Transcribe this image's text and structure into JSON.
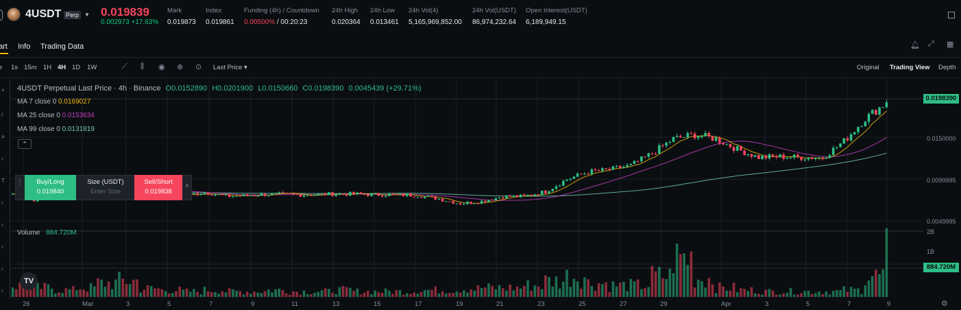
{
  "header": {
    "symbol": "4USDT",
    "badge": "Perp",
    "last_price": "0.019839",
    "change": "0.002973 +17.63%",
    "stats": [
      {
        "label": "Mark",
        "value": "0.019873",
        "x": 244
      },
      {
        "label": "Index",
        "value": "0.019861",
        "x": 300
      },
      {
        "label": "Funding (4h) / Countdown",
        "value": "",
        "x": 356
      },
      {
        "label": "24h High",
        "value": "0.020364",
        "x": 484
      },
      {
        "label": "24h Low",
        "value": "0.013461",
        "x": 540
      },
      {
        "label": "24h Vol(4)",
        "value": "5,165,969,852.00",
        "x": 596
      },
      {
        "label": "24h Vol(USDT)",
        "value": "86,974,232.64",
        "x": 689
      },
      {
        "label": "Open Interest(USDT)",
        "value": "6,189,949.15",
        "x": 767
      }
    ],
    "funding_rate": "0.00500%",
    "countdown": "/ 00:20:23"
  },
  "tabs": [
    "art",
    "Info",
    "Trading Data"
  ],
  "toolbar": {
    "intervals": [
      "e",
      "1s",
      "15m",
      "1H",
      "4H",
      "1D",
      "1W"
    ],
    "active_interval": "4H",
    "price_type": "Last Price",
    "views": [
      "Original",
      "Trading View",
      "Depth"
    ],
    "active_view": "Trading View"
  },
  "legend": {
    "title": "4USDT Perpetual Last Price · 4h · Binance",
    "o": "O0.0152890",
    "h": "H0.0201900",
    "l": "L0.0150660",
    "c": "C0.0198390",
    "delta": "0.0045439 (+29.71%)",
    "ma7_label": "MA 7 close 0",
    "ma7_value": "0.0169027",
    "ma25_label": "MA 25 close 0",
    "ma25_value": "0.0153634",
    "ma99_label": "MA 99 close 0",
    "ma99_value": "0.0131819",
    "volume_label": "Volume",
    "volume_value": "884.720M"
  },
  "order_panel": {
    "buy_label": "Buy/Long",
    "buy_price": "0.019840",
    "size_label": "Size (USDT)",
    "size_placeholder": "Enter Size",
    "sell_label": "Sell/Short",
    "sell_price": "0.019838"
  },
  "price_axis": {
    "current": "0.0198390",
    "ticks": [
      "0.0150000",
      "0.0099995",
      "0.0049995"
    ],
    "volume_current": "884.720M",
    "volume_ticks": [
      "2B",
      "1B"
    ]
  },
  "time_axis": [
    "26",
    "Mar",
    "3",
    "5",
    "7",
    "9",
    "11",
    "13",
    "15",
    "17",
    "19",
    "21",
    "23",
    "25",
    "27",
    "29",
    "Apr",
    "3",
    "5",
    "7",
    "9"
  ],
  "colors": {
    "up": "#2ebd85",
    "down": "#f6465d",
    "ma7": "#f0b90b",
    "ma25": "#c23fc1",
    "ma99": "#6fc6b7"
  },
  "chart_data": {
    "type": "candlestick",
    "interval": "4h",
    "series_hint": "daily summary of 4h closes read from chart",
    "dates": [
      "Feb 26",
      "Feb 27",
      "Feb 28",
      "Mar 1",
      "Mar 2",
      "Mar 3",
      "Mar 4",
      "Mar 5",
      "Mar 6",
      "Mar 7",
      "Mar 8",
      "Mar 9",
      "Mar 10",
      "Mar 11",
      "Mar 12",
      "Mar 13",
      "Mar 14",
      "Mar 15",
      "Mar 16",
      "Mar 17",
      "Mar 18",
      "Mar 19",
      "Mar 20",
      "Mar 21",
      "Mar 22",
      "Mar 23",
      "Mar 24",
      "Mar 25",
      "Mar 26",
      "Mar 27",
      "Mar 28",
      "Mar 29",
      "Mar 30",
      "Mar 31",
      "Apr 1",
      "Apr 2",
      "Apr 3",
      "Apr 4",
      "Apr 5",
      "Apr 6",
      "Apr 7",
      "Apr 8"
    ],
    "close": [
      0.0085,
      0.0078,
      0.0083,
      0.009,
      0.0091,
      0.0093,
      0.009,
      0.0086,
      0.0083,
      0.0087,
      0.0082,
      0.0083,
      0.0085,
      0.0084,
      0.0084,
      0.0085,
      0.0085,
      0.0084,
      0.0084,
      0.0083,
      0.0079,
      0.0073,
      0.0076,
      0.0082,
      0.0082,
      0.0088,
      0.0103,
      0.0112,
      0.0115,
      0.012,
      0.0135,
      0.0153,
      0.0158,
      0.0153,
      0.014,
      0.013,
      0.0131,
      0.013,
      0.013,
      0.015,
      0.0178,
      0.0198
    ],
    "volume_relative": [
      0.25,
      0.2,
      0.15,
      0.2,
      0.3,
      0.35,
      0.18,
      0.15,
      0.12,
      0.15,
      0.12,
      0.12,
      0.15,
      0.12,
      0.12,
      0.15,
      0.12,
      0.12,
      0.12,
      0.15,
      0.15,
      0.18,
      0.2,
      0.2,
      0.25,
      0.35,
      0.45,
      0.3,
      0.25,
      0.25,
      0.45,
      0.85,
      0.4,
      0.2,
      0.15,
      0.12,
      0.12,
      0.12,
      0.12,
      0.15,
      0.45,
      0.95
    ],
    "ylim": [
      0.0045,
      0.021
    ]
  }
}
